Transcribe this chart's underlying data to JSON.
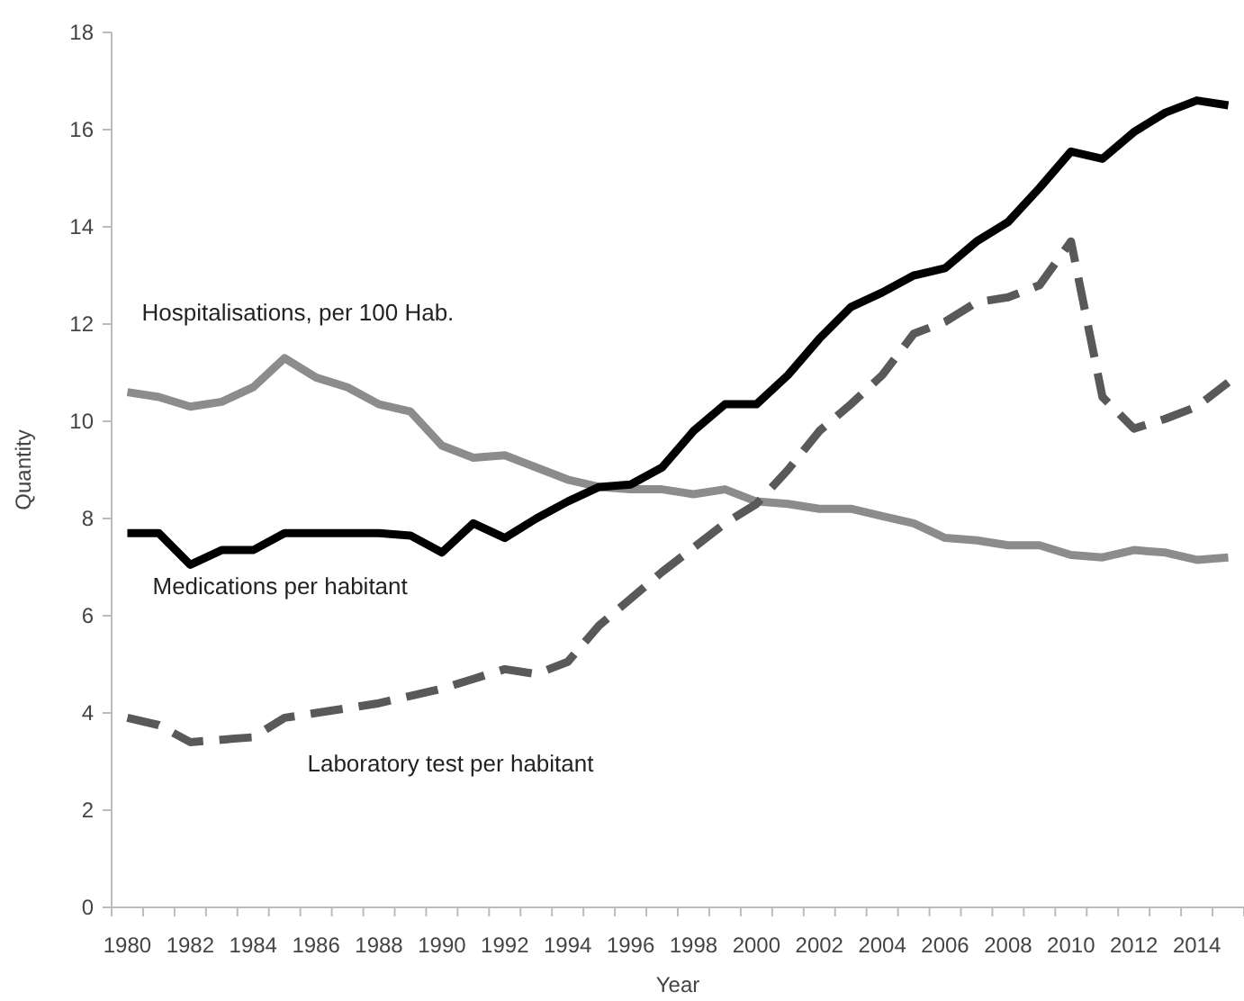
{
  "chart_data": {
    "type": "line",
    "xlabel": "Year",
    "ylabel": "Quantity",
    "categories": [
      "1980",
      null,
      "1982",
      null,
      "1984",
      null,
      "1986",
      null,
      "1988",
      null,
      "1990",
      null,
      "1992",
      null,
      "1994",
      null,
      "1996",
      null,
      "1998",
      null,
      "2000",
      null,
      "2002",
      null,
      "2004",
      null,
      "2006",
      null,
      "2008",
      null,
      "2010",
      null,
      "2012",
      null,
      "2014",
      null
    ],
    "ylim": [
      0,
      18
    ],
    "yticks": [
      0,
      2,
      4,
      6,
      8,
      10,
      12,
      14,
      16,
      18
    ],
    "grid": false,
    "marker": "none",
    "series": [
      {
        "name": "Hospitalisations, per 100 Hab.",
        "color": "#8c8c8c",
        "line_style": "solid",
        "values": [
          10.6,
          10.5,
          10.3,
          10.4,
          10.7,
          11.3,
          10.9,
          10.7,
          10.35,
          10.2,
          9.5,
          9.25,
          9.3,
          9.05,
          8.8,
          8.65,
          8.6,
          8.6,
          8.5,
          8.6,
          8.35,
          8.3,
          8.2,
          8.2,
          8.05,
          7.9,
          7.6,
          7.55,
          7.45,
          7.45,
          7.25,
          7.2,
          7.35,
          7.3,
          7.15,
          7.2
        ]
      },
      {
        "name": "Medications per habitant",
        "color": "#000000",
        "line_style": "solid",
        "values": [
          7.7,
          7.7,
          7.05,
          7.35,
          7.35,
          7.7,
          7.7,
          7.7,
          7.7,
          7.65,
          7.3,
          7.9,
          7.6,
          8.0,
          8.35,
          8.65,
          8.7,
          9.05,
          9.8,
          10.35,
          10.35,
          10.95,
          11.7,
          12.35,
          12.65,
          13.0,
          13.15,
          13.7,
          14.1,
          14.8,
          15.55,
          15.4,
          15.95,
          16.35,
          16.6,
          16.5
        ]
      },
      {
        "name": "Laboratory test  per habitant",
        "color": "#595959",
        "line_style": "dashed",
        "values": [
          3.9,
          3.75,
          3.4,
          3.45,
          3.5,
          3.9,
          4.0,
          4.1,
          4.2,
          4.35,
          4.5,
          4.7,
          4.9,
          4.8,
          5.05,
          5.8,
          6.35,
          6.9,
          7.4,
          7.9,
          8.3,
          9.0,
          9.8,
          10.35,
          10.95,
          11.8,
          12.05,
          12.45,
          12.55,
          12.8,
          13.7,
          10.5,
          9.85,
          10.05,
          10.3,
          10.8
        ]
      }
    ]
  }
}
